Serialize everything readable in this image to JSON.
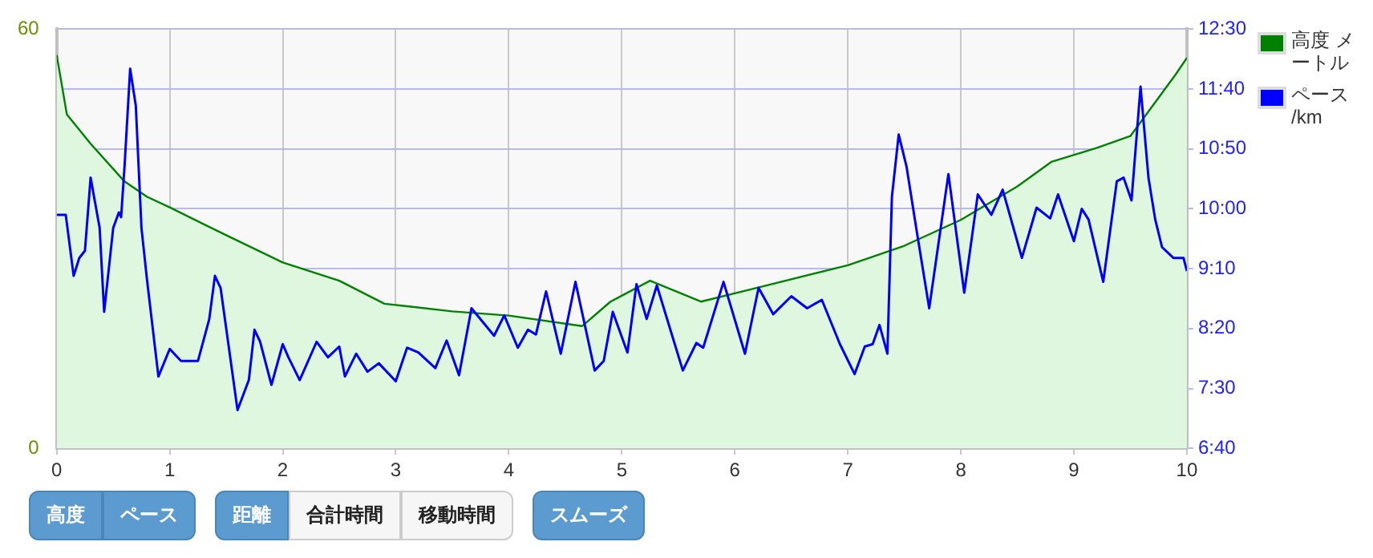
{
  "chart_data": {
    "type": "area",
    "xlim": [
      0,
      10
    ],
    "xticks": [
      0,
      1,
      2,
      3,
      4,
      5,
      6,
      7,
      8,
      9,
      10
    ],
    "ylim": [
      0,
      60
    ],
    "yticks": [
      0,
      60
    ],
    "y2lim": [
      400,
      750
    ],
    "y2ticks": [
      {
        "value": 400,
        "label": "6:40"
      },
      {
        "value": 450,
        "label": "7:30"
      },
      {
        "value": 500,
        "label": "8:20"
      },
      {
        "value": 550,
        "label": "9:10"
      },
      {
        "value": 600,
        "label": "10:00"
      },
      {
        "value": 650,
        "label": "10:50"
      },
      {
        "value": 700,
        "label": "11:40"
      },
      {
        "value": 750,
        "label": "12:30"
      }
    ],
    "grid": true,
    "legend": "right",
    "marker": "none",
    "line_style": "solid",
    "series": [
      {
        "name": "高度 メートル",
        "color": "#008000",
        "x": [
          0,
          0.09,
          0.3,
          0.6,
          0.8,
          1,
          1.5,
          2,
          2.5,
          2.9,
          3.5,
          4,
          4.65,
          4.9,
          5.25,
          5.7,
          6.2,
          7,
          7.5,
          8,
          8.5,
          8.8,
          9.2,
          9.5,
          9.9,
          10
        ],
        "values": [
          56.3,
          47.8,
          43.6,
          38.2,
          36,
          34.5,
          30.5,
          26.6,
          24,
          20.7,
          19.6,
          19,
          17.5,
          21,
          24,
          21,
          23,
          26.2,
          29,
          32.7,
          37.5,
          41,
          43,
          44.7,
          53.5,
          55.9
        ]
      },
      {
        "name": "ペース /km",
        "type": "line",
        "axis": "y2",
        "color": "#0000ff",
        "x": [
          0,
          0.08,
          0.15,
          0.2,
          0.25,
          0.3,
          0.38,
          0.42,
          0.5,
          0.55,
          0.57,
          0.6,
          0.65,
          0.7,
          0.75,
          0.8,
          0.9,
          1,
          1.1,
          1.25,
          1.35,
          1.4,
          1.45,
          1.6,
          1.7,
          1.75,
          1.8,
          1.9,
          2,
          2.05,
          2.15,
          2.3,
          2.4,
          2.5,
          2.55,
          2.65,
          2.75,
          2.85,
          3,
          3.1,
          3.2,
          3.35,
          3.45,
          3.56,
          3.67,
          3.87,
          3.96,
          4.08,
          4.17,
          4.24,
          4.33,
          4.46,
          4.59,
          4.76,
          4.84,
          4.92,
          5.05,
          5.13,
          5.22,
          5.31,
          5.54,
          5.66,
          5.72,
          5.9,
          6.09,
          6.21,
          6.34,
          6.5,
          6.64,
          6.77,
          6.93,
          7.06,
          7.15,
          7.22,
          7.28,
          7.35,
          7.39,
          7.45,
          7.52,
          7.61,
          7.72,
          7.89,
          8.03,
          8.15,
          8.27,
          8.37,
          8.54,
          8.67,
          8.79,
          8.86,
          9,
          9.07,
          9.13,
          9.26,
          9.38,
          9.44,
          9.51,
          9.59,
          9.66,
          9.72,
          9.78,
          9.88,
          9.97,
          10
        ],
        "values": [
          595,
          595,
          544,
          559,
          565,
          626,
          584,
          514,
          584,
          597,
          593,
          635,
          717,
          686,
          584,
          540,
          460,
          483,
          473,
          473,
          508,
          544,
          534,
          432,
          457,
          499,
          489,
          453,
          487,
          476,
          457,
          489,
          476,
          485,
          460,
          479,
          464,
          471,
          456,
          484,
          480,
          467,
          490,
          461,
          517,
          494,
          511,
          484,
          499,
          495,
          531,
          479,
          539,
          465,
          473,
          514,
          480,
          537,
          508,
          536,
          465,
          488,
          484,
          539,
          479,
          534,
          512,
          527,
          517,
          524,
          487,
          462,
          485,
          487,
          503,
          479,
          610,
          662,
          635,
          581,
          517,
          629,
          530,
          612,
          595,
          616,
          559,
          601,
          592,
          612,
          573,
          600,
          591,
          539,
          623,
          626,
          607,
          702,
          626,
          591,
          568,
          559,
          559,
          548
        ]
      }
    ],
    "annotations": [
      "高度",
      "ペース",
      "距離",
      "合計時間",
      "移動時間",
      "スムーズ"
    ]
  }
}
